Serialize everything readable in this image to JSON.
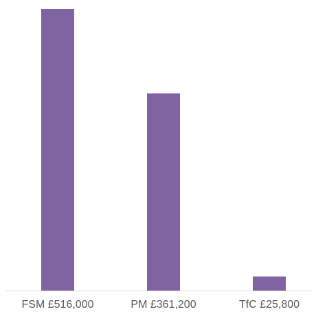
{
  "chart_data": {
    "type": "bar",
    "categories": [
      "FSM £516,000",
      "PM £361,200",
      "TfC £25,800"
    ],
    "values": [
      516000,
      361200,
      25800
    ],
    "color": "#8064a2"
  }
}
